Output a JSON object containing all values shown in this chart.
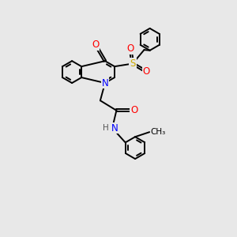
{
  "background_color": "#e8e8e8",
  "figsize": [
    3.0,
    3.0
  ],
  "dpi": 100,
  "bond_color": "#000000",
  "bond_width": 1.4,
  "atom_colors": {
    "N": "#0000ff",
    "O": "#ff0000",
    "S": "#ccaa00",
    "C": "#000000",
    "H": "#555555"
  },
  "font_size_atom": 8.5,
  "font_size_small": 7.0
}
